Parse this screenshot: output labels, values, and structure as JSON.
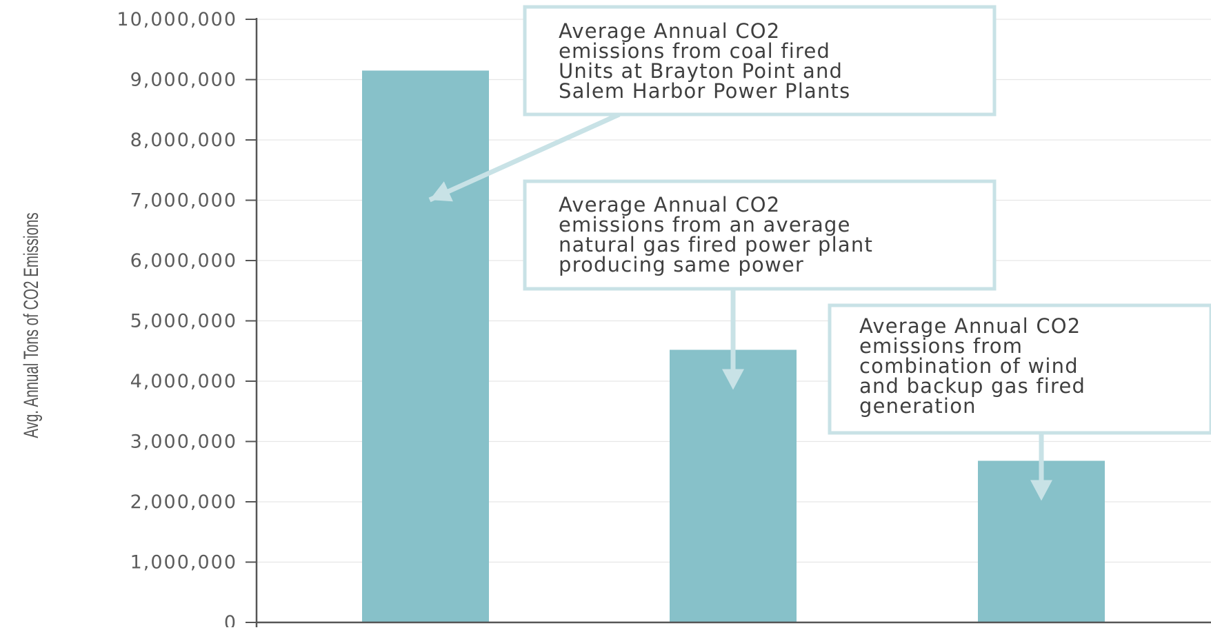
{
  "chart_data": {
    "type": "bar",
    "categories": [
      "",
      "",
      ""
    ],
    "values": [
      9150000,
      4520000,
      2680000
    ],
    "title": "",
    "xlabel": "",
    "ylabel": "Avg. Annual Tons of CO2 Emissions",
    "ylim": [
      0,
      10000000
    ],
    "yticks": [
      "0",
      "1,000,000",
      "2,000,000",
      "3,000,000",
      "4,000,000",
      "5,000,000",
      "6,000,000",
      "7,000,000",
      "8,000,000",
      "9,000,000",
      "10,000,000"
    ],
    "grid": true,
    "legend": "none",
    "annotations": [
      {
        "bar": 0,
        "lines": [
          "Average Annual CO2",
          "emissions from coal fired",
          "Units at Brayton Point and",
          "Salem Harbor Power Plants"
        ]
      },
      {
        "bar": 1,
        "lines": [
          "Average Annual CO2",
          "emissions from an average",
          "natural gas fired power plant",
          "producing same power"
        ]
      },
      {
        "bar": 2,
        "lines": [
          "Average Annual CO2",
          "emissions from",
          "combination of wind",
          "and backup gas fired",
          "generation"
        ]
      }
    ],
    "colors": {
      "bar": "#87c1c9",
      "callout_border": "#c8e2e6",
      "axis": "#555555",
      "grid": "#e6e6e6"
    }
  }
}
